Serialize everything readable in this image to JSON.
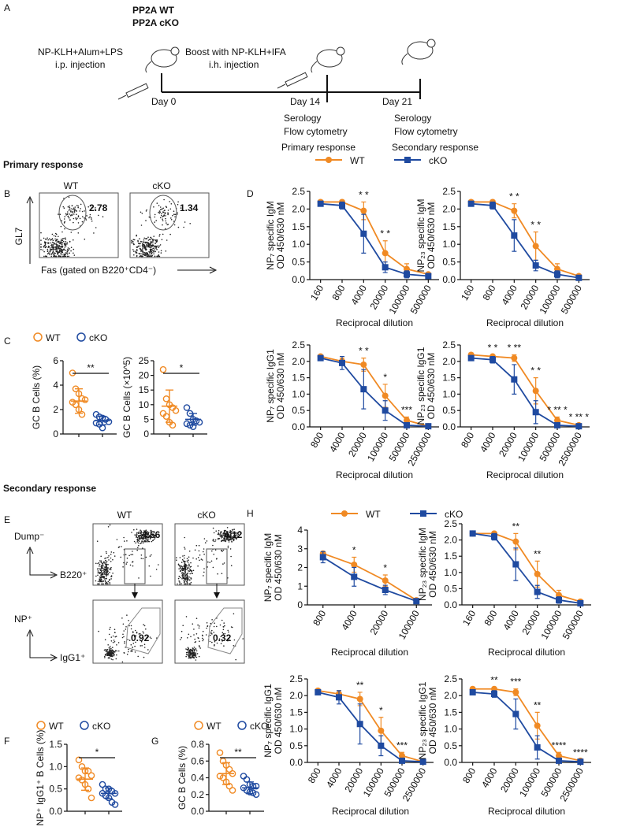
{
  "panels": [
    "A",
    "B",
    "C",
    "D",
    "E",
    "F",
    "G",
    "H"
  ],
  "sections": [
    "Primary response",
    "Secondary response"
  ],
  "schematic": {
    "legend": [
      {
        "name": "PP2A WT",
        "color": "#f08a24"
      },
      {
        "name": "PP2A cKO",
        "color": "#1f4aa0"
      }
    ],
    "step1": [
      "NP-KLH+Alum+LPS",
      "i.p. injection"
    ],
    "step2": [
      "Boost with NP-KLH+IFA",
      "i.h. injection"
    ],
    "days": [
      "Day 0",
      "Day 14",
      "Day 21"
    ],
    "readout1": [
      "Serology",
      "Flow cytometry",
      "Primary response"
    ],
    "readout2": [
      "Serology",
      "Flow cytometry",
      "Secondary response"
    ]
  },
  "flow_B": {
    "groups": [
      "WT",
      "cKO"
    ],
    "gates": [
      "2.78",
      "1.34"
    ],
    "ylabel": "GL7",
    "xlabel": "Fas (gated on B220⁺CD4⁻)"
  },
  "flow_E": {
    "groups": [
      "WT",
      "cKO"
    ],
    "top_gates": [
      "4.56",
      "4.12"
    ],
    "bottom_gates": [
      "0.92",
      "0.32"
    ],
    "top_axes": [
      "Dump⁻",
      "B220⁺"
    ],
    "bottom_axes": [
      "NP⁺",
      "IgG1⁺"
    ]
  },
  "chart_data": [
    {
      "type": "dotplot",
      "ylabel": "GC B Cells (%)",
      "ylim": [
        0,
        6
      ],
      "yticks": [
        0,
        2,
        4,
        6
      ],
      "significance": "**",
      "legend": true,
      "series": [
        {
          "name": "WT",
          "color": "#f08a24",
          "values": [
            5.0,
            3.7,
            3.3,
            2.9,
            2.8,
            2.6,
            2.4,
            2.0,
            1.6
          ],
          "mean": 2.7,
          "sd": 1.0
        },
        {
          "name": "cKO",
          "color": "#1f4aa0",
          "values": [
            1.6,
            1.4,
            1.3,
            1.2,
            1.0,
            0.9,
            0.8,
            0.5
          ],
          "mean": 1.1,
          "sd": 0.35
        }
      ]
    },
    {
      "type": "dotplot",
      "ylabel": "GC B Cells (×10^5)",
      "ylim": [
        0,
        25
      ],
      "yticks": [
        0,
        5,
        10,
        15,
        20,
        25
      ],
      "significance": "*",
      "legend": false,
      "series": [
        {
          "color": "#f08a24",
          "values": [
            22,
            12,
            10,
            9,
            8,
            7,
            6,
            4,
            3
          ],
          "mean": 9.5,
          "sd": 5.5
        },
        {
          "color": "#1f4aa0",
          "values": [
            9,
            7,
            5,
            4.5,
            4,
            3.5,
            3,
            2.5
          ],
          "mean": 5,
          "sd": 2
        }
      ]
    },
    {
      "type": "line",
      "ylabel": [
        "NP₇ specific IgM",
        "OD 450/630 nM"
      ],
      "xlabel": "Reciprocal dilution",
      "legend": true,
      "categories": [
        "160",
        "800",
        "4000",
        "20000",
        "100000",
        "500000"
      ],
      "ylim": [
        0,
        2.5
      ],
      "yticks": [
        {
          "value": 0,
          "label": "0.0"
        },
        0.5,
        {
          "value": 1,
          "label": "1.0"
        },
        1.5,
        {
          "value": 2,
          "label": "2.0"
        },
        2.5
      ],
      "series": [
        {
          "name": "WT",
          "color": "#f08a24",
          "values": [
            2.2,
            2.2,
            1.95,
            0.75,
            0.3,
            0.15
          ],
          "errors": [
            0.05,
            0.05,
            0.25,
            0.35,
            0.15,
            0.05
          ]
        },
        {
          "name": "cKO",
          "color": "#1f4aa0",
          "values": [
            2.15,
            2.1,
            1.3,
            0.35,
            0.15,
            0.1
          ],
          "errors": [
            0.05,
            0.1,
            0.55,
            0.15,
            0.1,
            0.05
          ]
        }
      ],
      "annotations": [
        null,
        null,
        "* *",
        "* *",
        null,
        null
      ]
    },
    {
      "type": "line",
      "ylabel": [
        "NP₂₃ specific IgM",
        "OD 450/630 nM"
      ],
      "xlabel": "Reciprocal dilution",
      "legend": false,
      "categories": [
        "160",
        "800",
        "4000",
        "20000",
        "100000",
        "500000"
      ],
      "ylim": [
        0,
        2.5
      ],
      "yticks": [
        {
          "value": 0,
          "label": "0.0"
        },
        0.5,
        {
          "value": 1,
          "label": "1.0"
        },
        1.5,
        {
          "value": 2,
          "label": "2.0"
        },
        2.5
      ],
      "series": [
        {
          "color": "#f08a24",
          "values": [
            2.2,
            2.2,
            1.95,
            0.95,
            0.3,
            0.1
          ],
          "errors": [
            0.05,
            0.05,
            0.2,
            0.4,
            0.15,
            0.05
          ]
        },
        {
          "color": "#1f4aa0",
          "values": [
            2.15,
            2.1,
            1.25,
            0.4,
            0.15,
            0.05
          ],
          "errors": [
            0.05,
            0.1,
            0.45,
            0.15,
            0.1,
            0.03
          ]
        }
      ],
      "annotations": [
        null,
        null,
        "* *",
        "* *",
        null,
        null
      ]
    },
    {
      "type": "line",
      "ylabel": [
        "NP₇ specific IgG1",
        "OD 450/630 nM"
      ],
      "xlabel": "Reciprocal dilution",
      "legend": false,
      "categories": [
        "800",
        "4000",
        "20000",
        "100000",
        "500000",
        "2500000"
      ],
      "ylim": [
        0,
        2.5
      ],
      "yticks": [
        {
          "value": 0,
          "label": "0.0"
        },
        0.5,
        {
          "value": 1,
          "label": "1.0"
        },
        1.5,
        {
          "value": 2,
          "label": "2.0"
        },
        2.5
      ],
      "series": [
        {
          "color": "#f08a24",
          "values": [
            2.15,
            2.0,
            1.9,
            0.95,
            0.2,
            0.02
          ],
          "errors": [
            0.05,
            0.1,
            0.2,
            0.35,
            0.1,
            0.02
          ]
        },
        {
          "color": "#1f4aa0",
          "values": [
            2.1,
            1.95,
            1.15,
            0.5,
            0.05,
            0.02
          ],
          "errors": [
            0.05,
            0.2,
            0.6,
            0.3,
            0.05,
            0.02
          ]
        }
      ],
      "annotations": [
        null,
        null,
        "* *",
        "*",
        "***",
        null
      ]
    },
    {
      "type": "line",
      "ylabel": [
        "NP₂₃ specific IgG1",
        "OD 450/630 nM"
      ],
      "xlabel": "Reciprocal dilution",
      "legend": false,
      "categories": [
        "800",
        "4000",
        "20000",
        "100000",
        "500000",
        "2500000"
      ],
      "ylim": [
        0,
        2.5
      ],
      "yticks": [
        {
          "value": 0,
          "label": "0.0"
        },
        0.5,
        {
          "value": 1,
          "label": "1.0"
        },
        1.5,
        {
          "value": 2,
          "label": "2.0"
        },
        2.5
      ],
      "series": [
        {
          "color": "#f08a24",
          "values": [
            2.2,
            2.15,
            2.1,
            1.1,
            0.2,
            0.05
          ],
          "errors": [
            0.05,
            0.05,
            0.1,
            0.4,
            0.1,
            0.03
          ]
        },
        {
          "color": "#1f4aa0",
          "values": [
            2.1,
            2.05,
            1.45,
            0.45,
            0.05,
            0.02
          ],
          "errors": [
            0.05,
            0.1,
            0.45,
            0.35,
            0.05,
            0.02
          ]
        }
      ],
      "annotations": [
        null,
        "* *",
        "* **",
        "* *",
        "* ** *",
        "* ** *"
      ]
    },
    {
      "type": "dotplot",
      "ylabel": "NP⁺ IgG1⁺ B Cells (%)",
      "ylim": [
        0,
        1.5
      ],
      "yticks": [
        {
          "value": 0,
          "label": "0.0"
        },
        0.5,
        {
          "value": 1,
          "label": "1.0"
        },
        1.5
      ],
      "significance": "*",
      "legend": true,
      "series": [
        {
          "name": "WT",
          "color": "#f08a24",
          "values": [
            1.15,
            1.0,
            0.9,
            0.9,
            0.8,
            0.75,
            0.7,
            0.6,
            0.5,
            0.3
          ],
          "mean": 0.72,
          "sd": 0.25
        },
        {
          "name": "cKO",
          "color": "#1f4aa0",
          "values": [
            0.6,
            0.5,
            0.5,
            0.45,
            0.4,
            0.4,
            0.35,
            0.3,
            0.2,
            0.15
          ],
          "mean": 0.4,
          "sd": 0.12
        }
      ]
    },
    {
      "type": "dotplot",
      "ylabel": "GC B Cells (%)",
      "ylim": [
        0,
        0.8
      ],
      "yticks": [
        {
          "value": 0,
          "label": "0.0"
        },
        0.2,
        0.4,
        0.6,
        0.8
      ],
      "significance": "**",
      "legend": true,
      "series": [
        {
          "name": "WT",
          "color": "#f08a24",
          "values": [
            0.7,
            0.6,
            0.55,
            0.5,
            0.45,
            0.42,
            0.4,
            0.35,
            0.3,
            0.25
          ],
          "mean": 0.45,
          "sd": 0.13
        },
        {
          "name": "cKO",
          "color": "#1f4aa0",
          "values": [
            0.42,
            0.38,
            0.32,
            0.3,
            0.3,
            0.28,
            0.25,
            0.23,
            0.22,
            0.2
          ],
          "mean": 0.28,
          "sd": 0.07
        }
      ]
    },
    {
      "type": "line",
      "ylabel": [
        "NP₇ specific IgM",
        "OD 450/630 nM"
      ],
      "xlabel": "Reciprocal dilution",
      "legend": true,
      "categories": [
        "800",
        "4000",
        "20000",
        "100000"
      ],
      "ylim": [
        0,
        4
      ],
      "yticks": [
        0,
        1,
        2,
        3,
        4
      ],
      "series": [
        {
          "name": "WT",
          "color": "#f08a24",
          "values": [
            2.75,
            2.15,
            1.3,
            0.25
          ],
          "errors": [
            0.1,
            0.4,
            0.3,
            0.05
          ]
        },
        {
          "name": "cKO",
          "color": "#1f4aa0",
          "values": [
            2.55,
            1.5,
            0.8,
            0.2
          ],
          "errors": [
            0.3,
            0.5,
            0.25,
            0.05
          ]
        }
      ],
      "annotations": [
        null,
        "*",
        "*",
        null
      ]
    },
    {
      "type": "line",
      "ylabel": [
        "NP₂₃ specific IgM",
        "OD 450/630 nM"
      ],
      "xlabel": "Reciprocal dilution",
      "legend": false,
      "categories": [
        "160",
        "800",
        "4000",
        "20000",
        "100000",
        "500000"
      ],
      "ylim": [
        0,
        2.5
      ],
      "yticks": [
        {
          "value": 0,
          "label": "0.0"
        },
        0.5,
        {
          "value": 1,
          "label": "1.0"
        },
        1.5,
        {
          "value": 2,
          "label": "2.0"
        },
        2.5
      ],
      "series": [
        {
          "color": "#f08a24",
          "values": [
            2.2,
            2.2,
            1.95,
            0.95,
            0.3,
            0.1
          ],
          "errors": [
            0.05,
            0.05,
            0.25,
            0.4,
            0.15,
            0.05
          ]
        },
        {
          "color": "#1f4aa0",
          "values": [
            2.2,
            2.1,
            1.25,
            0.4,
            0.15,
            0.05
          ],
          "errors": [
            0.05,
            0.1,
            0.5,
            0.2,
            0.1,
            0.03
          ]
        }
      ],
      "annotations": [
        null,
        null,
        "**",
        "**",
        null,
        null
      ]
    },
    {
      "type": "line",
      "ylabel": [
        "NP₇ specific IgG1",
        "OD 450/630 nM"
      ],
      "xlabel": "Reciprocal dilution",
      "legend": false,
      "categories": [
        "800",
        "4000",
        "20000",
        "100000",
        "500000",
        "2500000"
      ],
      "ylim": [
        0,
        2.5
      ],
      "yticks": [
        {
          "value": 0,
          "label": "0.0"
        },
        0.5,
        {
          "value": 1,
          "label": "1.0"
        },
        1.5,
        {
          "value": 2,
          "label": "2.0"
        },
        2.5
      ],
      "series": [
        {
          "color": "#f08a24",
          "values": [
            2.15,
            2.05,
            1.9,
            0.95,
            0.2,
            0.02
          ],
          "errors": [
            0.05,
            0.1,
            0.2,
            0.4,
            0.1,
            0.02
          ]
        },
        {
          "color": "#1f4aa0",
          "values": [
            2.1,
            1.95,
            1.15,
            0.5,
            0.05,
            0.02
          ],
          "errors": [
            0.05,
            0.2,
            0.6,
            0.3,
            0.05,
            0.02
          ]
        }
      ],
      "annotations": [
        null,
        null,
        "**",
        "*",
        "***",
        null
      ]
    },
    {
      "type": "line",
      "ylabel": [
        "NP₂₃ specific IgG1",
        "OD 450/630 nM"
      ],
      "xlabel": "Reciprocal dilution",
      "legend": false,
      "categories": [
        "800",
        "4000",
        "20000",
        "100000",
        "500000",
        "2500000"
      ],
      "ylim": [
        0,
        2.5
      ],
      "yticks": [
        {
          "value": 0,
          "label": "0.0"
        },
        0.5,
        {
          "value": 1,
          "label": "1.0"
        },
        1.5,
        {
          "value": 2,
          "label": "2.0"
        },
        2.5
      ],
      "series": [
        {
          "color": "#f08a24",
          "values": [
            2.2,
            2.2,
            2.1,
            1.1,
            0.2,
            0.05
          ],
          "errors": [
            0.05,
            0.05,
            0.1,
            0.4,
            0.1,
            0.03
          ]
        },
        {
          "color": "#1f4aa0",
          "values": [
            2.1,
            2.05,
            1.45,
            0.45,
            0.05,
            0.02
          ],
          "errors": [
            0.05,
            0.1,
            0.45,
            0.35,
            0.05,
            0.02
          ]
        }
      ],
      "annotations": [
        null,
        "**",
        "***",
        "**",
        "****",
        "****"
      ]
    }
  ]
}
